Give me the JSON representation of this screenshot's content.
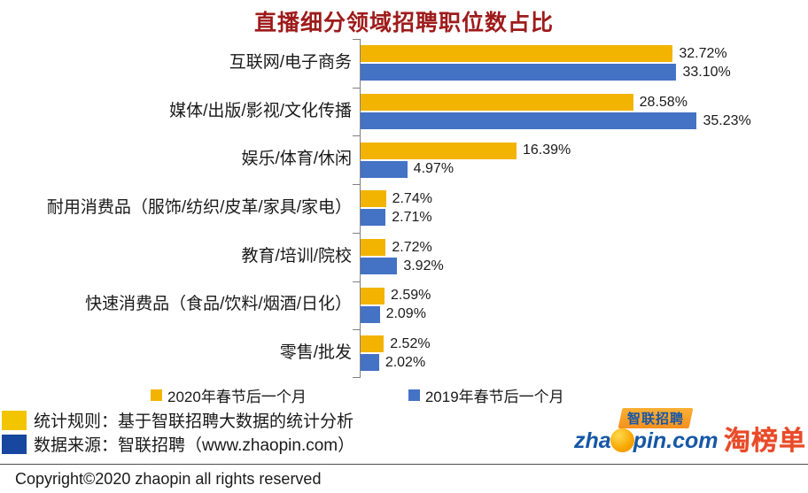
{
  "title": "直播细分领域招聘职位数占比",
  "chart_data": {
    "type": "bar",
    "orientation": "horizontal",
    "categories": [
      "互联网/电子商务",
      "媒体/出版/影视/文化传播",
      "娱乐/体育/休闲",
      "耐用消费品（服饰/纺织/皮革/家具/家电）",
      "教育/培训/院校",
      "快速消费品（食品/饮料/烟酒/日化）",
      "零售/批发"
    ],
    "series": [
      {
        "name": "2020年春节后一个月",
        "color": "#F2B400",
        "values": [
          32.72,
          28.58,
          16.39,
          2.74,
          2.72,
          2.59,
          2.52
        ]
      },
      {
        "name": "2019年春节后一个月",
        "color": "#4472C4",
        "values": [
          33.1,
          35.23,
          4.97,
          2.71,
          3.92,
          2.09,
          2.02
        ]
      }
    ],
    "value_suffix": "%",
    "xlim": [
      0,
      36
    ],
    "legend_position": "bottom",
    "grid": false
  },
  "notes": [
    {
      "color": "#F2C500",
      "text": "统计规则：基于智联招聘大数据的统计分析"
    },
    {
      "color": "#17479E",
      "text": "数据来源：智联招聘（www.zhaopin.com）"
    }
  ],
  "logos": {
    "zhaopin_ribbon": "智联招聘",
    "zhaopin_domain_pre": "zha",
    "zhaopin_domain_post": "pin.com",
    "taobangdan": "淘榜单"
  },
  "footer": {
    "copyright": "Copyright©2020 zhaopin all rights reserved"
  }
}
